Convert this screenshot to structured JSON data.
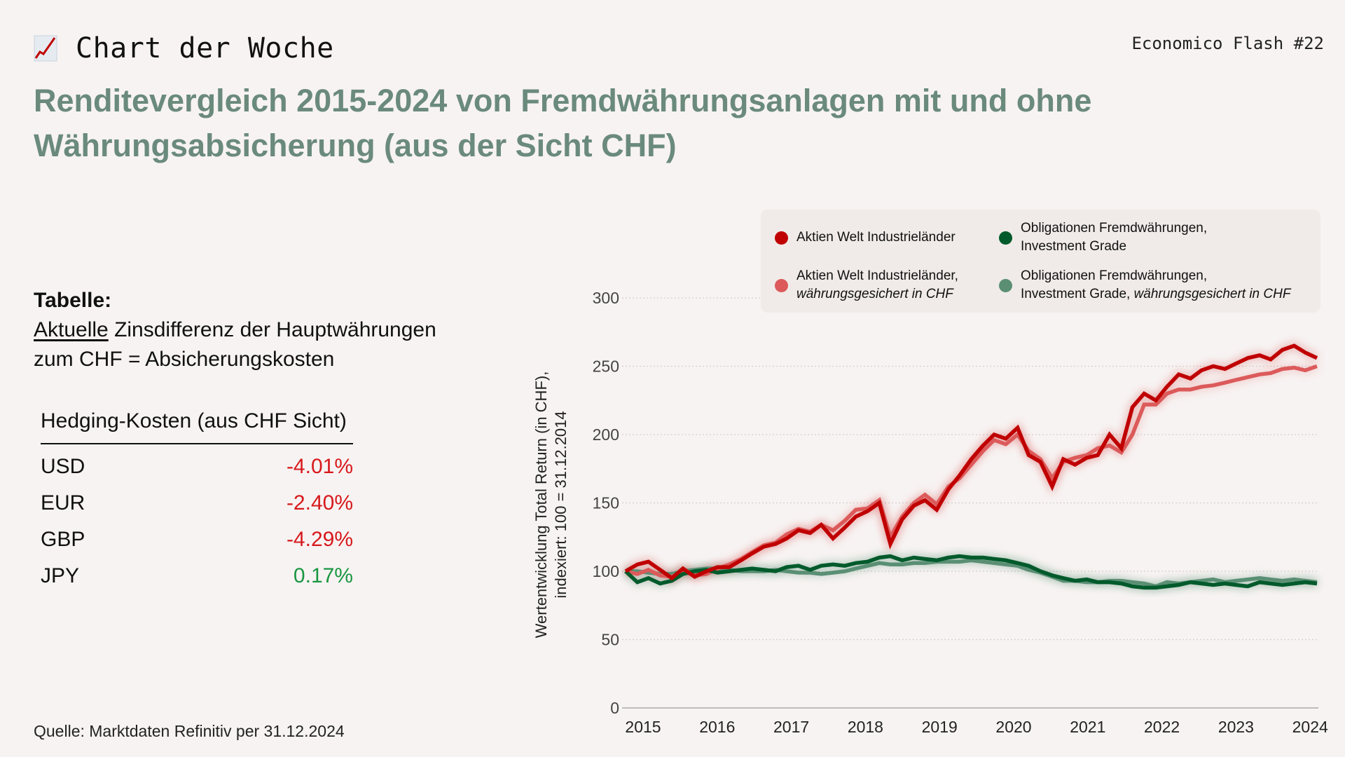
{
  "header": {
    "kicker_icon": "chart-increasing-icon",
    "kicker": "Chart der Woche",
    "issue": "Economico Flash #22",
    "title_line1": "Renditevergleich 2015-2024 von Fremdwährungsanlagen mit und ohne",
    "title_line2": "Währungsabsicherung (aus der Sicht CHF)"
  },
  "left": {
    "label": "Tabelle:",
    "desc_underlined": "Aktuelle",
    "desc_rest_line1": " Zinsdifferenz der Hauptwährungen",
    "desc_line2": "zum CHF = Absicherungskosten",
    "table": {
      "header": "Hedging-Kosten (aus CHF Sicht)",
      "rows": [
        {
          "currency": "USD",
          "value": "-4.01%",
          "color": "#d7191c"
        },
        {
          "currency": "EUR",
          "value": "-2.40%",
          "color": "#d7191c"
        },
        {
          "currency": "GBP",
          "value": "-4.29%",
          "color": "#d7191c"
        },
        {
          "currency": "JPY",
          "value": "0.17%",
          "color": "#1a9641"
        }
      ]
    },
    "source": "Quelle: Marktdaten Refinitiv per 31.12.2024"
  },
  "chart_data": {
    "type": "line",
    "title": "",
    "xlabel": "",
    "ylabel_line1": "Wertentwicklung Total Return (in CHF),",
    "ylabel_line2": "indexiert: 100 = 31.12.2014",
    "ylim": [
      0,
      300
    ],
    "yticks": [
      "0",
      "50",
      "100",
      "150",
      "200",
      "250",
      "300"
    ],
    "xlim": [
      2014.0,
      2025.0
    ],
    "xticks": [
      "2015",
      "2016",
      "2017",
      "2018",
      "2019",
      "2020",
      "2021",
      "2022",
      "2023",
      "2024"
    ],
    "grid": "horizontal dotted",
    "legend_position": "top-right",
    "x": [
      2014.0,
      2014.17,
      2014.33,
      2014.5,
      2014.67,
      2014.83,
      2015.0,
      2015.17,
      2015.33,
      2015.5,
      2015.67,
      2015.83,
      2016.0,
      2016.17,
      2016.33,
      2016.5,
      2016.67,
      2016.83,
      2017.0,
      2017.17,
      2017.33,
      2017.5,
      2017.67,
      2017.83,
      2018.0,
      2018.17,
      2018.33,
      2018.5,
      2018.67,
      2018.83,
      2019.0,
      2019.17,
      2019.33,
      2019.5,
      2019.67,
      2019.83,
      2020.0,
      2020.17,
      2020.33,
      2020.5,
      2020.67,
      2020.83,
      2021.0,
      2021.17,
      2021.33,
      2021.5,
      2021.67,
      2021.83,
      2022.0,
      2022.17,
      2022.33,
      2022.5,
      2022.67,
      2022.83,
      2023.0,
      2023.17,
      2023.33,
      2023.5,
      2023.67,
      2023.83,
      2024.0
    ],
    "series": [
      {
        "name": "Aktien Welt Industrieländer",
        "color": "#c00000",
        "values": [
          100,
          105,
          107,
          101,
          95,
          102,
          96,
          100,
          103,
          103,
          108,
          113,
          118,
          120,
          124,
          130,
          128,
          134,
          124,
          132,
          140,
          144,
          150,
          120,
          138,
          148,
          152,
          145,
          160,
          170,
          182,
          192,
          200,
          197,
          205,
          185,
          180,
          162,
          182,
          178,
          183,
          185,
          200,
          190,
          220,
          230,
          225,
          235,
          244,
          241,
          247,
          250,
          248,
          252,
          256,
          258,
          255,
          262,
          265,
          260,
          256
        ]
      },
      {
        "name": "Aktien Welt Industrieländer, währungsgesichert in CHF",
        "color": "#dc5a5a",
        "values": [
          100,
          98,
          101,
          97,
          96,
          100,
          97,
          98,
          102,
          105,
          109,
          114,
          119,
          121,
          127,
          131,
          129,
          134,
          130,
          137,
          145,
          146,
          152,
          125,
          140,
          150,
          156,
          149,
          162,
          168,
          178,
          188,
          196,
          193,
          200,
          188,
          182,
          168,
          180,
          183,
          185,
          190,
          192,
          187,
          200,
          222,
          222,
          230,
          233,
          233,
          235,
          236,
          238,
          240,
          242,
          244,
          245,
          248,
          249,
          247,
          250
        ]
      },
      {
        "name": "Obligationen Fremdwährungen, Investment Grade",
        "color": "#005a2b",
        "values": [
          100,
          92,
          95,
          91,
          93,
          98,
          100,
          101,
          99,
          100,
          101,
          102,
          101,
          100,
          103,
          104,
          101,
          104,
          105,
          104,
          106,
          107,
          110,
          111,
          108,
          110,
          109,
          108,
          110,
          111,
          110,
          110,
          109,
          108,
          106,
          104,
          100,
          97,
          95,
          93,
          94,
          92,
          92,
          91,
          89,
          88,
          88,
          89,
          90,
          92,
          91,
          90,
          91,
          90,
          89,
          92,
          91,
          90,
          91,
          92,
          91
        ]
      },
      {
        "name": "Obligationen Fremdwährungen, Investment Grade, währungsgesichert in CHF",
        "color": "#5a8f74",
        "values": [
          100,
          100,
          99,
          98,
          98,
          100,
          101,
          102,
          102,
          101,
          100,
          100,
          100,
          101,
          100,
          99,
          99,
          98,
          99,
          100,
          102,
          104,
          106,
          105,
          105,
          106,
          106,
          107,
          107,
          107,
          108,
          107,
          106,
          105,
          104,
          101,
          99,
          96,
          93,
          93,
          92,
          92,
          93,
          93,
          92,
          91,
          89,
          92,
          91,
          92,
          93,
          94,
          92,
          93,
          94,
          95,
          94,
          93,
          94,
          93,
          92
        ]
      }
    ]
  },
  "legend": [
    {
      "label": "Aktien Welt Industrieländer",
      "italic": "",
      "color": "#c00000"
    },
    {
      "label": "Obligationen Fremdwährungen,",
      "label2": "Investment Grade",
      "italic": "",
      "color": "#005a2b"
    },
    {
      "label": "Aktien Welt Industrieländer,",
      "italic": "währungsgesichert in CHF",
      "color": "#dc5a5a"
    },
    {
      "label": "Obligationen Fremdwährungen,",
      "label2": "Investment Grade, ",
      "italic": "währungsgesichert in CHF",
      "color": "#5a8f74"
    }
  ]
}
